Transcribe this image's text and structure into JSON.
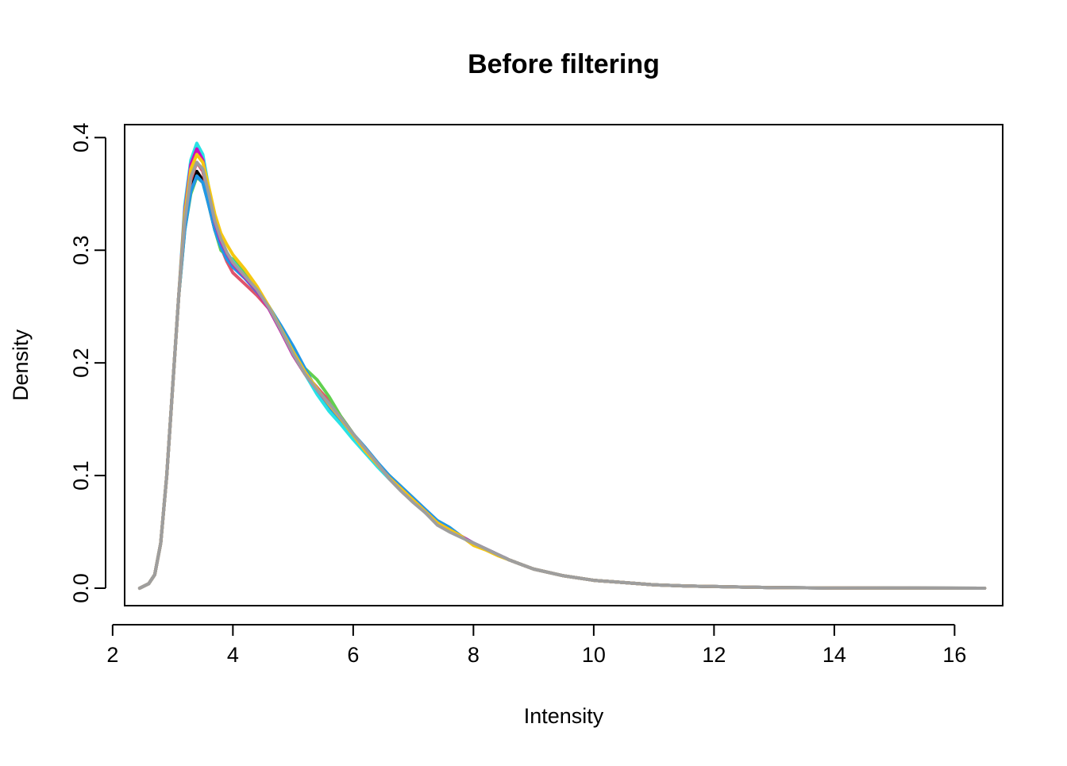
{
  "chart_data": {
    "type": "line",
    "title": "Before filtering",
    "xlabel": "Intensity",
    "ylabel": "Density",
    "xlim": [
      2.2,
      16.8
    ],
    "ylim": [
      -0.0155,
      0.4115
    ],
    "x_ticks": [
      2,
      4,
      6,
      8,
      10,
      12,
      14,
      16
    ],
    "x_tick_labels": [
      "2",
      "4",
      "6",
      "8",
      "10",
      "12",
      "14",
      "16"
    ],
    "y_ticks": [
      0.0,
      0.1,
      0.2,
      0.3,
      0.4
    ],
    "y_tick_labels": [
      "0.0",
      "0.1",
      "0.2",
      "0.3",
      "0.4"
    ],
    "grid": false,
    "legend": "none",
    "series_colors": [
      "#000000",
      "#DF536B",
      "#61D04F",
      "#2297E6",
      "#28E2E5",
      "#CD0BBC",
      "#F5C710",
      "#9E9E9E",
      "#000000",
      "#DF536B",
      "#61D04F",
      "#2297E6",
      "#28E2E5",
      "#CD0BBC",
      "#F5C710",
      "#9E9E9E"
    ],
    "series": [
      {
        "peak": 0.37,
        "x_end": 16.1,
        "x": [
          2.45,
          2.6,
          2.7,
          2.8,
          2.9,
          3.0,
          3.1,
          3.2,
          3.3,
          3.4,
          3.5,
          3.6,
          3.7,
          3.8,
          3.9,
          4.0,
          4.2,
          4.4,
          4.6,
          4.8,
          5.0,
          5.2,
          5.4,
          5.6,
          5.8,
          6.0,
          6.2,
          6.4,
          6.6,
          6.8,
          7.0,
          7.2,
          7.4,
          7.6,
          7.8,
          8.0,
          8.2,
          8.4,
          8.6,
          8.8,
          9.0,
          9.5,
          10.0,
          10.5,
          11.0,
          11.5,
          12.0,
          12.5,
          13.0,
          14.0,
          15.0,
          16.1
        ],
        "y": [
          0.0,
          0.004,
          0.012,
          0.04,
          0.1,
          0.18,
          0.26,
          0.32,
          0.355,
          0.37,
          0.362,
          0.34,
          0.318,
          0.305,
          0.295,
          0.287,
          0.277,
          0.265,
          0.248,
          0.228,
          0.207,
          0.19,
          0.178,
          0.166,
          0.152,
          0.137,
          0.123,
          0.11,
          0.098,
          0.088,
          0.078,
          0.068,
          0.058,
          0.052,
          0.046,
          0.04,
          0.035,
          0.03,
          0.025,
          0.021,
          0.017,
          0.011,
          0.007,
          0.005,
          0.003,
          0.002,
          0.0015,
          0.001,
          0.0005,
          0.0002,
          0.0001,
          0.0
        ]
      },
      {
        "peak": 0.378,
        "x_end": 16.5,
        "x": [
          2.45,
          2.6,
          2.7,
          2.8,
          2.9,
          3.0,
          3.1,
          3.2,
          3.3,
          3.4,
          3.5,
          3.6,
          3.7,
          3.8,
          3.9,
          4.0,
          4.2,
          4.4,
          4.6,
          4.8,
          5.0,
          5.2,
          5.4,
          5.6,
          5.8,
          6.0,
          6.2,
          6.4,
          6.6,
          6.8,
          7.0,
          7.2,
          7.4,
          7.6,
          7.8,
          8.0,
          8.2,
          8.4,
          8.6,
          8.8,
          9.0,
          9.5,
          10.0,
          10.5,
          11.0,
          11.5,
          12.0,
          12.5,
          13.0,
          14.0,
          15.0,
          16.5
        ],
        "y": [
          0.0,
          0.004,
          0.012,
          0.04,
          0.1,
          0.18,
          0.26,
          0.325,
          0.362,
          0.378,
          0.37,
          0.345,
          0.32,
          0.303,
          0.29,
          0.28,
          0.27,
          0.26,
          0.248,
          0.228,
          0.207,
          0.19,
          0.178,
          0.166,
          0.152,
          0.137,
          0.123,
          0.11,
          0.098,
          0.088,
          0.078,
          0.068,
          0.058,
          0.052,
          0.046,
          0.04,
          0.035,
          0.03,
          0.025,
          0.021,
          0.017,
          0.011,
          0.007,
          0.005,
          0.003,
          0.002,
          0.0015,
          0.001,
          0.0005,
          0.0002,
          0.0001,
          0.0
        ]
      },
      {
        "peak": 0.365,
        "x_end": 16.5,
        "x": [
          2.45,
          2.6,
          2.7,
          2.8,
          2.9,
          3.0,
          3.1,
          3.2,
          3.3,
          3.4,
          3.5,
          3.6,
          3.7,
          3.8,
          3.9,
          4.0,
          4.2,
          4.4,
          4.6,
          4.8,
          5.0,
          5.2,
          5.4,
          5.6,
          5.8,
          6.0,
          6.2,
          6.4,
          6.6,
          6.8,
          7.0,
          7.2,
          7.4,
          7.6,
          7.8,
          8.0,
          8.2,
          8.4,
          8.6,
          8.8,
          9.0,
          9.5,
          10.0,
          10.5,
          11.0,
          11.5,
          12.0,
          12.5,
          13.0,
          14.0,
          15.0,
          16.5
        ],
        "y": [
          0.0,
          0.004,
          0.012,
          0.04,
          0.1,
          0.18,
          0.26,
          0.318,
          0.35,
          0.365,
          0.36,
          0.34,
          0.318,
          0.3,
          0.295,
          0.292,
          0.28,
          0.267,
          0.25,
          0.23,
          0.21,
          0.195,
          0.185,
          0.17,
          0.152,
          0.137,
          0.123,
          0.11,
          0.1,
          0.09,
          0.08,
          0.068,
          0.06,
          0.054,
          0.046,
          0.04,
          0.035,
          0.03,
          0.025,
          0.021,
          0.017,
          0.011,
          0.007,
          0.005,
          0.003,
          0.002,
          0.0015,
          0.001,
          0.0005,
          0.0002,
          0.0001,
          0.0
        ]
      },
      {
        "peak": 0.366,
        "x_end": 16.5,
        "x": [
          2.45,
          2.6,
          2.7,
          2.8,
          2.9,
          3.0,
          3.1,
          3.2,
          3.3,
          3.4,
          3.5,
          3.6,
          3.7,
          3.8,
          3.9,
          4.0,
          4.2,
          4.4,
          4.6,
          4.8,
          5.0,
          5.2,
          5.4,
          5.6,
          5.8,
          6.0,
          6.2,
          6.4,
          6.6,
          6.8,
          7.0,
          7.2,
          7.4,
          7.6,
          7.8,
          8.0,
          8.2,
          8.4,
          8.6,
          8.8,
          9.0,
          9.5,
          10.0,
          10.5,
          11.0,
          11.5,
          12.0,
          12.5,
          13.0,
          14.0,
          15.0,
          16.5
        ],
        "y": [
          0.0,
          0.004,
          0.012,
          0.04,
          0.1,
          0.18,
          0.26,
          0.318,
          0.352,
          0.366,
          0.36,
          0.34,
          0.318,
          0.303,
          0.292,
          0.285,
          0.275,
          0.263,
          0.25,
          0.233,
          0.215,
          0.195,
          0.175,
          0.16,
          0.148,
          0.137,
          0.125,
          0.112,
          0.1,
          0.09,
          0.08,
          0.07,
          0.06,
          0.054,
          0.046,
          0.04,
          0.035,
          0.03,
          0.025,
          0.021,
          0.017,
          0.011,
          0.007,
          0.005,
          0.003,
          0.002,
          0.0015,
          0.001,
          0.0005,
          0.0002,
          0.0001,
          0.0
        ]
      },
      {
        "peak": 0.395,
        "x_end": 16.5,
        "x": [
          2.45,
          2.6,
          2.7,
          2.8,
          2.9,
          3.0,
          3.1,
          3.2,
          3.3,
          3.4,
          3.5,
          3.6,
          3.7,
          3.8,
          3.9,
          4.0,
          4.2,
          4.4,
          4.6,
          4.8,
          5.0,
          5.2,
          5.4,
          5.6,
          5.8,
          6.0,
          6.2,
          6.4,
          6.6,
          6.8,
          7.0,
          7.2,
          7.4,
          7.6,
          7.8,
          8.0,
          8.2,
          8.4,
          8.6,
          8.8,
          9.0,
          9.5,
          10.0,
          10.5,
          11.0,
          11.5,
          12.0,
          12.5,
          13.0,
          14.0,
          15.0,
          16.5
        ],
        "y": [
          0.0,
          0.004,
          0.012,
          0.04,
          0.1,
          0.18,
          0.26,
          0.34,
          0.38,
          0.395,
          0.385,
          0.355,
          0.328,
          0.31,
          0.298,
          0.29,
          0.277,
          0.265,
          0.248,
          0.23,
          0.21,
          0.19,
          0.172,
          0.157,
          0.145,
          0.132,
          0.12,
          0.108,
          0.097,
          0.087,
          0.077,
          0.067,
          0.058,
          0.052,
          0.046,
          0.04,
          0.035,
          0.03,
          0.025,
          0.021,
          0.017,
          0.011,
          0.007,
          0.005,
          0.003,
          0.002,
          0.0015,
          0.001,
          0.0005,
          0.0002,
          0.0001,
          0.0
        ]
      },
      {
        "peak": 0.39,
        "x_end": 16.5,
        "x": [
          2.45,
          2.6,
          2.7,
          2.8,
          2.9,
          3.0,
          3.1,
          3.2,
          3.3,
          3.4,
          3.5,
          3.6,
          3.7,
          3.8,
          3.9,
          4.0,
          4.2,
          4.4,
          4.6,
          4.8,
          5.0,
          5.2,
          5.4,
          5.6,
          5.8,
          6.0,
          6.2,
          6.4,
          6.6,
          6.8,
          7.0,
          7.2,
          7.4,
          7.6,
          7.8,
          8.0,
          8.2,
          8.4,
          8.6,
          8.8,
          9.0,
          9.5,
          10.0,
          10.5,
          11.0,
          11.5,
          12.0,
          12.5,
          13.0,
          14.0,
          15.0,
          16.5
        ],
        "y": [
          0.0,
          0.004,
          0.012,
          0.04,
          0.1,
          0.18,
          0.26,
          0.335,
          0.376,
          0.39,
          0.38,
          0.352,
          0.325,
          0.308,
          0.297,
          0.288,
          0.276,
          0.264,
          0.248,
          0.228,
          0.207,
          0.19,
          0.176,
          0.163,
          0.15,
          0.136,
          0.122,
          0.11,
          0.098,
          0.088,
          0.078,
          0.068,
          0.058,
          0.052,
          0.046,
          0.04,
          0.035,
          0.03,
          0.025,
          0.021,
          0.017,
          0.011,
          0.007,
          0.005,
          0.003,
          0.002,
          0.0015,
          0.001,
          0.0005,
          0.0002,
          0.0001,
          0.0
        ]
      },
      {
        "peak": 0.385,
        "x_end": 16.5,
        "x": [
          2.45,
          2.6,
          2.7,
          2.8,
          2.9,
          3.0,
          3.1,
          3.2,
          3.3,
          3.4,
          3.5,
          3.6,
          3.7,
          3.8,
          3.9,
          4.0,
          4.2,
          4.4,
          4.6,
          4.8,
          5.0,
          5.2,
          5.4,
          5.6,
          5.8,
          6.0,
          6.2,
          6.4,
          6.6,
          6.8,
          7.0,
          7.2,
          7.4,
          7.6,
          7.8,
          8.0,
          8.2,
          8.4,
          8.6,
          8.8,
          9.0,
          9.5,
          10.0,
          10.5,
          11.0,
          11.5,
          12.0,
          12.5,
          13.0,
          14.0,
          15.0,
          16.5
        ],
        "y": [
          0.0,
          0.004,
          0.012,
          0.04,
          0.1,
          0.18,
          0.26,
          0.332,
          0.372,
          0.385,
          0.378,
          0.356,
          0.332,
          0.315,
          0.305,
          0.296,
          0.283,
          0.268,
          0.25,
          0.23,
          0.21,
          0.192,
          0.177,
          0.163,
          0.15,
          0.136,
          0.122,
          0.11,
          0.098,
          0.088,
          0.078,
          0.068,
          0.058,
          0.052,
          0.046,
          0.038,
          0.034,
          0.029,
          0.025,
          0.021,
          0.017,
          0.011,
          0.007,
          0.005,
          0.003,
          0.002,
          0.0015,
          0.001,
          0.0005,
          0.0002,
          0.0001,
          0.0
        ]
      },
      {
        "peak": 0.378,
        "x_end": 16.5,
        "x": [
          2.45,
          2.6,
          2.7,
          2.8,
          2.9,
          3.0,
          3.1,
          3.2,
          3.3,
          3.4,
          3.5,
          3.6,
          3.7,
          3.8,
          3.9,
          4.0,
          4.2,
          4.4,
          4.6,
          4.8,
          5.0,
          5.2,
          5.4,
          5.6,
          5.8,
          6.0,
          6.2,
          6.4,
          6.6,
          6.8,
          7.0,
          7.2,
          7.4,
          7.6,
          7.8,
          8.0,
          8.2,
          8.4,
          8.6,
          8.8,
          9.0,
          9.5,
          10.0,
          10.5,
          11.0,
          11.5,
          12.0,
          12.5,
          13.0,
          14.0,
          15.0,
          16.5
        ],
        "y": [
          0.0,
          0.004,
          0.012,
          0.04,
          0.1,
          0.18,
          0.26,
          0.326,
          0.365,
          0.378,
          0.372,
          0.35,
          0.326,
          0.31,
          0.298,
          0.289,
          0.277,
          0.265,
          0.249,
          0.229,
          0.208,
          0.19,
          0.176,
          0.164,
          0.151,
          0.137,
          0.124,
          0.111,
          0.097,
          0.086,
          0.076,
          0.067,
          0.056,
          0.05,
          0.045,
          0.04,
          0.035,
          0.03,
          0.025,
          0.021,
          0.017,
          0.011,
          0.007,
          0.005,
          0.003,
          0.002,
          0.0015,
          0.001,
          0.0005,
          0.0002,
          0.0001,
          0.0
        ]
      }
    ]
  }
}
